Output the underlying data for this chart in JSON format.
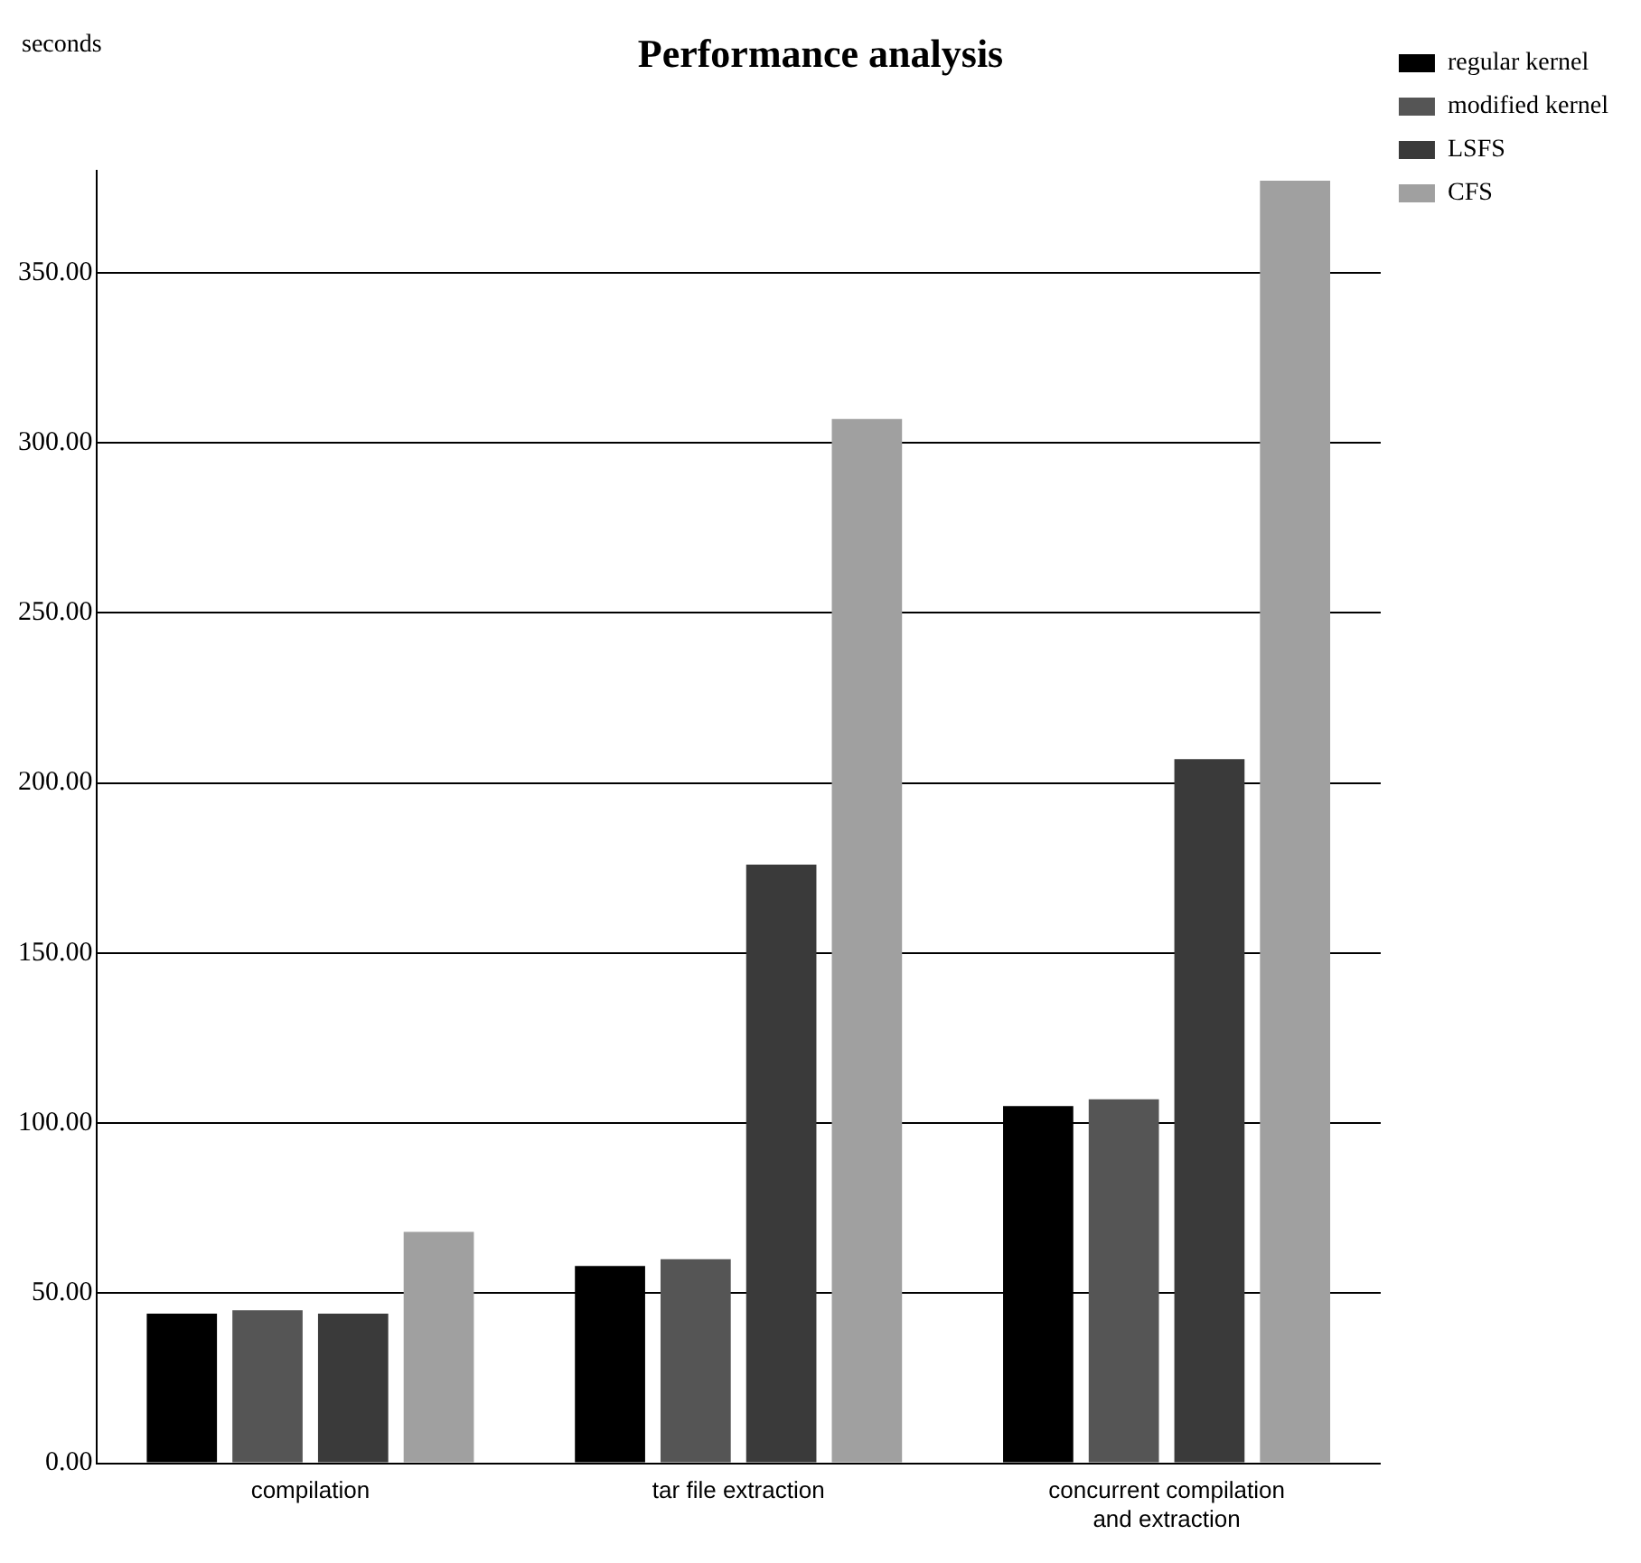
{
  "chart_data": {
    "type": "bar",
    "title": "Performance analysis",
    "ylabel": "seconds",
    "categories": [
      "compilation",
      "tar file extraction",
      "concurrent compilation\nand extraction"
    ],
    "series": [
      {
        "name": "regular kernel",
        "color": "#000000",
        "values": [
          44,
          58,
          105
        ]
      },
      {
        "name": "modified kernel",
        "color": "#555555",
        "values": [
          45,
          60,
          107
        ]
      },
      {
        "name": "LSFS",
        "color": "#3a3a3a",
        "values": [
          44,
          176,
          207
        ]
      },
      {
        "name": "CFS",
        "color": "#a0a0a0",
        "values": [
          68,
          307,
          377
        ]
      }
    ],
    "ylim": [
      0,
      380
    ],
    "yticks": [
      {
        "value": 0,
        "label": "0.00"
      },
      {
        "value": 50,
        "label": "50.00"
      },
      {
        "value": 100,
        "label": "100.00"
      },
      {
        "value": 150,
        "label": "150.00"
      },
      {
        "value": 200,
        "label": "200.00"
      },
      {
        "value": 250,
        "label": "250.00"
      },
      {
        "value": 300,
        "label": "300.00"
      },
      {
        "value": 350,
        "label": "350.00"
      }
    ],
    "grid": "y",
    "legend": "top right"
  }
}
